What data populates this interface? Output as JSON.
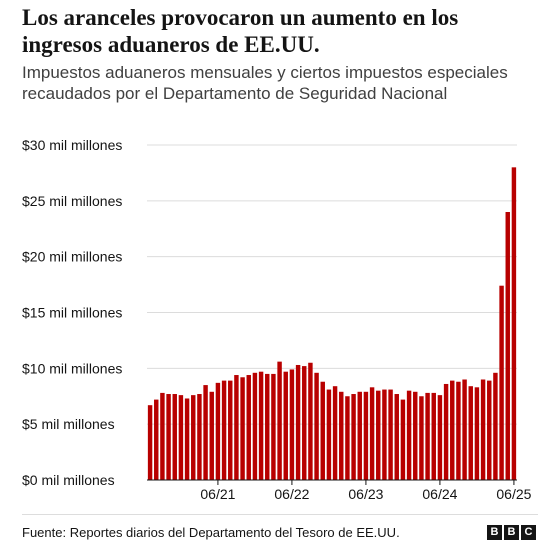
{
  "chart_data": {
    "type": "bar",
    "title": "Los aranceles provocaron un aumento en los ingresos aduaneros de EE.UU.",
    "subtitle": "Impuestos aduaneros mensuales y ciertos impuestos especiales recaudados por el Departamento de Seguridad Nacional",
    "source": "Fuente: Reportes diarios del Departamento del Tesoro de EE.UU.",
    "logo": [
      "B",
      "B",
      "C"
    ],
    "categories": [
      null,
      null,
      null,
      null,
      null,
      null,
      null,
      null,
      null,
      null,
      null,
      "06/21",
      null,
      null,
      null,
      null,
      null,
      null,
      null,
      null,
      null,
      null,
      null,
      "06/22",
      null,
      null,
      null,
      null,
      null,
      null,
      null,
      null,
      null,
      null,
      null,
      "06/23",
      null,
      null,
      null,
      null,
      null,
      null,
      null,
      null,
      null,
      null,
      null,
      "06/24",
      null,
      null,
      null,
      null,
      null,
      null,
      null,
      null,
      null,
      null,
      null,
      "06/25"
    ],
    "values": [
      6.7,
      7.2,
      7.8,
      7.7,
      7.7,
      7.6,
      7.3,
      7.6,
      7.7,
      8.5,
      7.9,
      8.7,
      8.9,
      8.9,
      9.4,
      9.2,
      9.4,
      9.6,
      9.7,
      9.5,
      9.5,
      10.6,
      9.7,
      9.9,
      10.3,
      10.2,
      10.5,
      9.6,
      8.8,
      8.1,
      8.4,
      7.9,
      7.5,
      7.7,
      7.9,
      7.9,
      8.3,
      8.0,
      8.1,
      8.1,
      7.7,
      7.2,
      8.0,
      7.9,
      7.5,
      7.8,
      7.8,
      7.6,
      8.6,
      8.9,
      8.8,
      9.0,
      8.4,
      8.3,
      9.0,
      8.9,
      9.6,
      17.4,
      24.0,
      28.0
    ],
    "color": "#b80000",
    "ylim": [
      0,
      30
    ],
    "yticks": [
      {
        "value": 0,
        "label": "$0 mil millones"
      },
      {
        "value": 5,
        "label": "$5 mil millones"
      },
      {
        "value": 10,
        "label": "$10 mil millones"
      },
      {
        "value": 15,
        "label": "$15 mil millones"
      },
      {
        "value": 20,
        "label": "$20 mil millones"
      },
      {
        "value": 25,
        "label": "$25 mil millones"
      },
      {
        "value": 30,
        "label": "$30 mil millones"
      }
    ],
    "grid": true
  }
}
